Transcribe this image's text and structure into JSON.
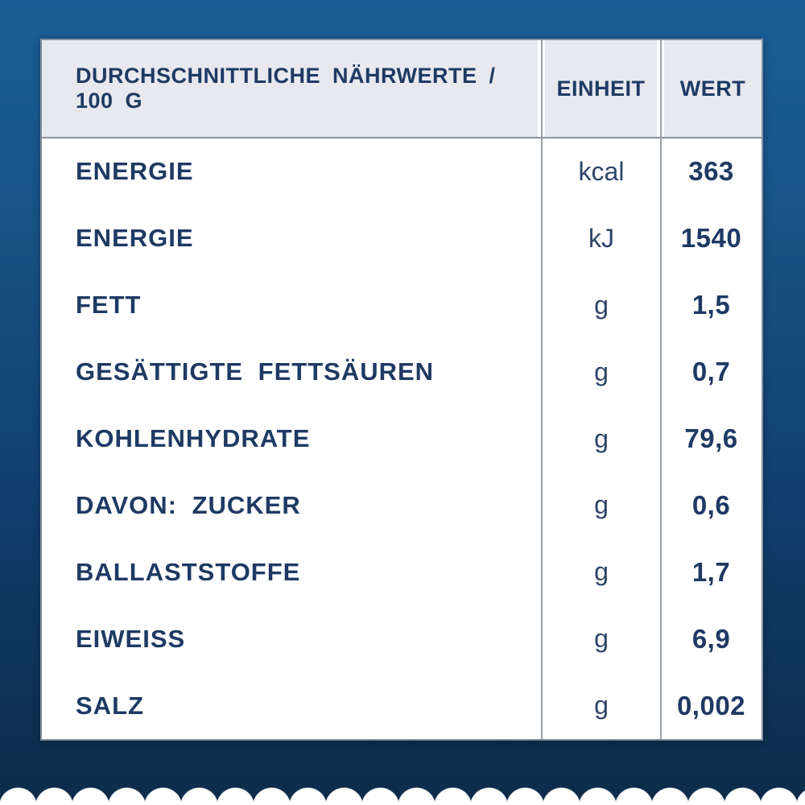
{
  "table": {
    "header": {
      "nutrients": "DURCHSCHNITTLICHE NÄHRWERTE / 100 G",
      "unit": "EINHEIT",
      "value": "WERT"
    },
    "rows": [
      {
        "label": "ENERGIE",
        "unit": "kcal",
        "value": "363"
      },
      {
        "label": "ENERGIE",
        "unit": "kJ",
        "value": "1540"
      },
      {
        "label": "FETT",
        "unit": "g",
        "value": "1,5"
      },
      {
        "label": "GESÄTTIGTE FETTSÄUREN",
        "unit": "g",
        "value": "0,7"
      },
      {
        "label": "KOHLENHYDRATE",
        "unit": "g",
        "value": "79,6"
      },
      {
        "label": "DAVON: ZUCKER",
        "unit": "g",
        "value": "0,6"
      },
      {
        "label": "BALLASTSTOFFE",
        "unit": "g",
        "value": "1,7"
      },
      {
        "label": "EIWEISS",
        "unit": "g",
        "value": "6,9"
      },
      {
        "label": "SALZ",
        "unit": "g",
        "value": "0,002"
      }
    ]
  },
  "colors": {
    "background_top": "#1b5d96",
    "background_bottom": "#0d2c4b",
    "table_bg": "#ffffff",
    "header_cell_bg": "#e7e9ee",
    "text_navy": "#1e3a64",
    "divider_gray": "#99a0aa",
    "scallop_white": "#ffffff"
  },
  "chart_data": {
    "type": "table",
    "title": "DURCHSCHNITTLICHE NÄHRWERTE / 100 G",
    "columns": [
      "DURCHSCHNITTLICHE NÄHRWERTE / 100 G",
      "EINHEIT",
      "WERT"
    ],
    "rows": [
      [
        "ENERGIE",
        "kcal",
        "363"
      ],
      [
        "ENERGIE",
        "kJ",
        "1540"
      ],
      [
        "FETT",
        "g",
        "1,5"
      ],
      [
        "GESÄTTIGTE FETTSÄUREN",
        "g",
        "0,7"
      ],
      [
        "KOHLENHYDRATE",
        "g",
        "79,6"
      ],
      [
        "DAVON: ZUCKER",
        "g",
        "0,6"
      ],
      [
        "BALLASTSTOFFE",
        "g",
        "1,7"
      ],
      [
        "EIWEISS",
        "g",
        "6,9"
      ],
      [
        "SALZ",
        "g",
        "0,002"
      ]
    ]
  }
}
